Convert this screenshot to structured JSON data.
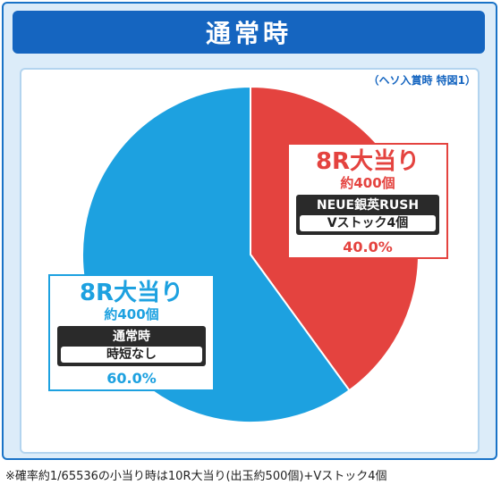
{
  "header": {
    "title": "通常時"
  },
  "condition_note": "（ヘソ入賞時 特図1）",
  "colors": {
    "red": "#e4433f",
    "blue": "#1da1e0"
  },
  "chart_data": {
    "type": "pie",
    "title": "通常時",
    "slices": [
      {
        "label": "8R大当り",
        "sub": "約400個",
        "mode_title": "NEUE銀英RUSH",
        "mode_value": "Vストック4個",
        "value": 40.0,
        "percent_text": "40.0%",
        "color": "#e4433f"
      },
      {
        "label": "8R大当り",
        "sub": "約400個",
        "mode_title": "通常時",
        "mode_value": "時短なし",
        "value": 60.0,
        "percent_text": "60.0%",
        "color": "#1da1e0"
      }
    ]
  },
  "footnote": "※確率約1/65536の小当り時は10R大当り(出玉約500個)+Vストック4個"
}
